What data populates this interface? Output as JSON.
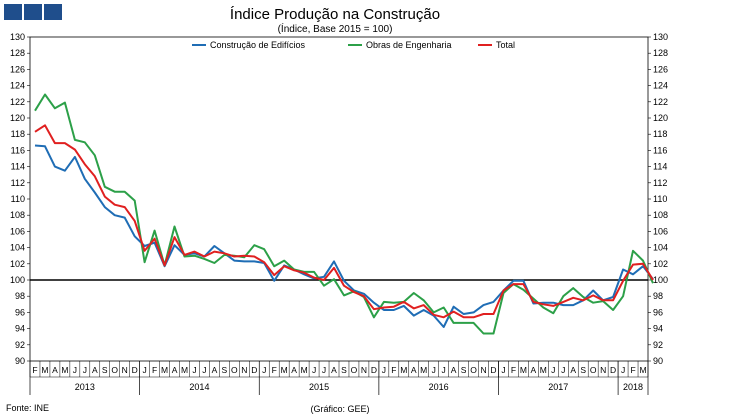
{
  "logo": {
    "icon": "brand-squares-icon",
    "color": "#1f4e8c"
  },
  "chart_data": {
    "type": "line",
    "title": "Índice Produção na Construção",
    "subtitle": "(Índice, Base 2015 = 100)",
    "source": "Fonte: INE",
    "credit": "(Gráfico: GEE)",
    "ylim": [
      90,
      130
    ],
    "yticks": [
      "90",
      "92",
      "94",
      "96",
      "98",
      "100",
      "102",
      "104",
      "106",
      "108",
      "110",
      "112",
      "114",
      "116",
      "118",
      "120",
      "122",
      "124",
      "126",
      "128",
      "130"
    ],
    "reference_line": 100,
    "month_labels": [
      "F",
      "M",
      "A",
      "M",
      "J",
      "J",
      "A",
      "S",
      "O",
      "N",
      "D",
      "J",
      "F",
      "M",
      "A",
      "M",
      "J",
      "J",
      "A",
      "S",
      "O",
      "N",
      "D",
      "J",
      "F",
      "M",
      "A",
      "M",
      "J",
      "J",
      "A",
      "S",
      "O",
      "N",
      "D",
      "J",
      "F",
      "M",
      "A",
      "M",
      "J",
      "J",
      "A",
      "S",
      "O",
      "N",
      "D",
      "J",
      "F",
      "M",
      "A",
      "M",
      "J",
      "J",
      "A",
      "S",
      "O",
      "N",
      "D",
      "J",
      "F",
      "M"
    ],
    "years": [
      {
        "label": "2013",
        "months": 11
      },
      {
        "label": "2014",
        "months": 12
      },
      {
        "label": "2015",
        "months": 12
      },
      {
        "label": "2016",
        "months": 12
      },
      {
        "label": "2017",
        "months": 12
      },
      {
        "label": "2018",
        "months": 3
      }
    ],
    "series": [
      {
        "name": "Construção de Edifícios",
        "color": "#1f6db5",
        "values": [
          116.6,
          116.5,
          114.0,
          113.5,
          115.2,
          112.5,
          110.8,
          109.0,
          108.0,
          107.7,
          105.4,
          104.2,
          104.6,
          101.7,
          104.3,
          103.1,
          103.3,
          102.9,
          104.2,
          103.3,
          102.4,
          102.3,
          102.3,
          102.1,
          99.9,
          101.8,
          101.3,
          100.7,
          100.2,
          100.4,
          102.3,
          99.9,
          98.7,
          98.3,
          97.2,
          96.3,
          96.3,
          96.8,
          95.6,
          96.3,
          95.6,
          94.2,
          96.7,
          95.8,
          96.0,
          96.9,
          97.3,
          98.7,
          99.9,
          99.9,
          97.1,
          97.2,
          97.2,
          96.9,
          96.9,
          97.5,
          98.7,
          97.5,
          97.9,
          101.3,
          100.7,
          101.7,
          100.1
        ]
      },
      {
        "name": "Obras de Engenharia",
        "color": "#2ca048",
        "values": [
          120.9,
          122.9,
          121.2,
          121.9,
          117.3,
          117.0,
          115.4,
          111.5,
          110.9,
          110.9,
          109.8,
          102.2,
          106.1,
          101.8,
          106.6,
          102.9,
          103.0,
          102.6,
          102.1,
          103.1,
          103.0,
          102.8,
          104.3,
          103.8,
          101.7,
          102.4,
          101.3,
          101.0,
          101.0,
          99.3,
          100.1,
          98.1,
          98.6,
          97.9,
          95.4,
          97.3,
          97.2,
          97.3,
          98.4,
          97.5,
          96.0,
          96.6,
          94.7,
          94.7,
          94.7,
          93.4,
          93.4,
          98.4,
          99.5,
          98.8,
          97.7,
          96.6,
          95.9,
          98.0,
          99.0,
          97.9,
          97.2,
          97.4,
          96.3,
          98.0,
          103.6,
          102.4,
          99.6
        ]
      },
      {
        "name": "Total",
        "color": "#e02020",
        "values": [
          118.3,
          119.1,
          116.9,
          116.9,
          116.1,
          114.3,
          112.8,
          110.3,
          109.3,
          109.0,
          107.3,
          103.6,
          105.1,
          101.8,
          105.3,
          103.1,
          103.5,
          102.9,
          103.5,
          103.3,
          102.9,
          103.0,
          102.9,
          102.2,
          100.6,
          101.7,
          101.2,
          100.9,
          100.3,
          100.0,
          101.5,
          99.3,
          98.5,
          98.0,
          96.4,
          96.6,
          96.7,
          97.3,
          96.5,
          96.9,
          95.7,
          95.4,
          96.1,
          95.4,
          95.4,
          95.8,
          95.8,
          98.7,
          99.5,
          99.5,
          97.3,
          97.0,
          96.8,
          97.3,
          97.8,
          97.5,
          98.1,
          97.5,
          97.5,
          99.9,
          101.9,
          102.0,
          100.0
        ]
      }
    ]
  }
}
